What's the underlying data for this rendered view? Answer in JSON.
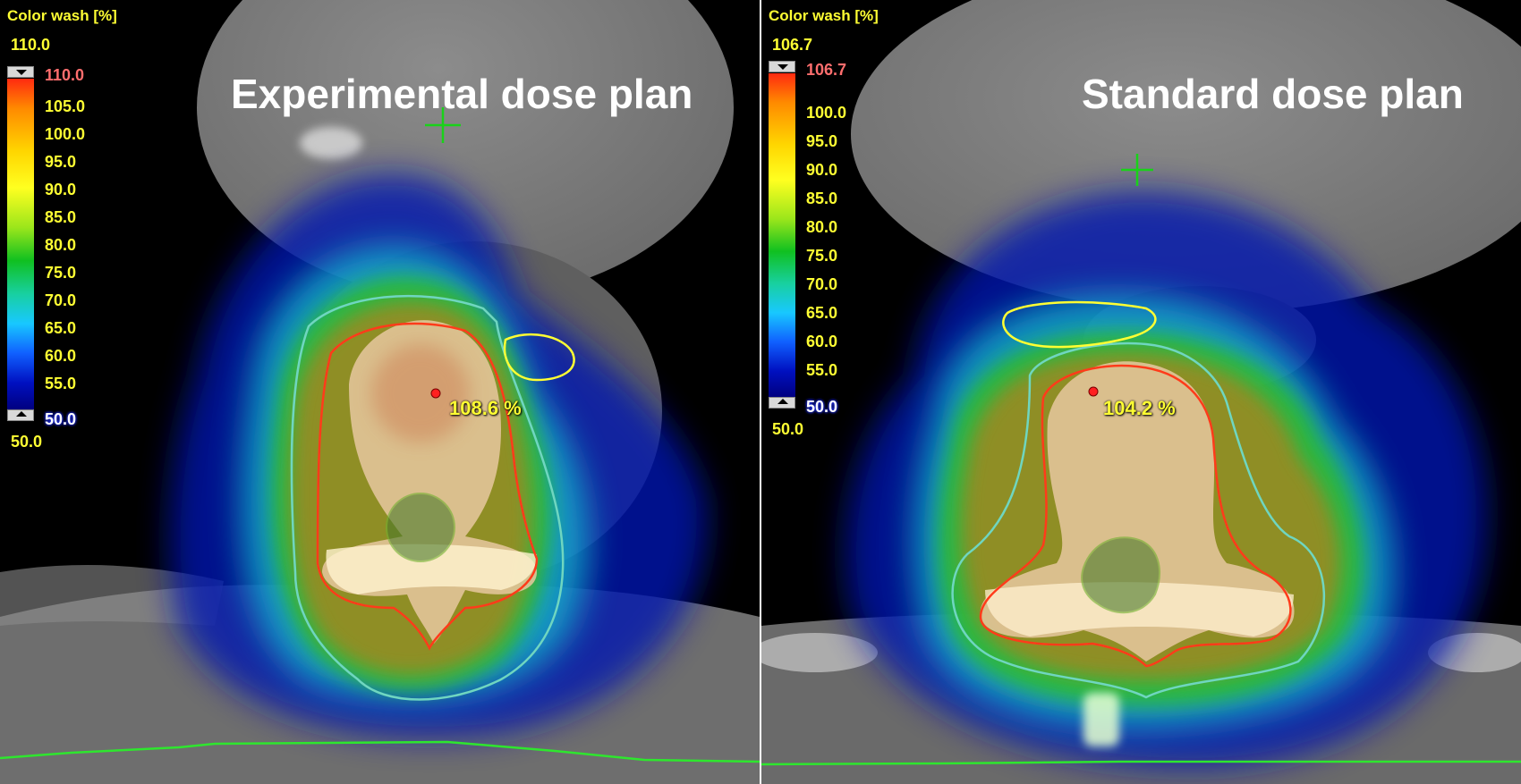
{
  "panels": [
    {
      "title": "Experimental dose plan",
      "legend": {
        "title": "Color wash [%]",
        "top_value": "110.0",
        "max_label": "110.0",
        "ticks": [
          "105.0",
          "100.0",
          "95.0",
          "90.0",
          "85.0",
          "80.0",
          "75.0",
          "70.0",
          "65.0",
          "60.0",
          "55.0"
        ],
        "min_label": "50.0",
        "bottom_value": "50.0"
      },
      "max_dose_label": "108.6 %"
    },
    {
      "title": "Standard dose plan",
      "legend": {
        "title": "Color wash [%]",
        "top_value": "106.7",
        "max_label": "106.7",
        "ticks": [
          "100.0",
          "95.0",
          "90.0",
          "85.0",
          "80.0",
          "75.0",
          "70.0",
          "65.0",
          "60.0",
          "55.0"
        ],
        "min_label": "50.0",
        "bottom_value": "50.0"
      },
      "max_dose_label": "104.2 %"
    }
  ],
  "colors": {
    "legend_text": "#ffff33",
    "legend_max": "#ff6e6e",
    "isodose_red": "#ff3b1a",
    "isodose_cyan": "#6fd6c0",
    "contour_yellow": "#ffff33",
    "crosshair": "#19d219",
    "body_outline": "#2ee62e"
  }
}
